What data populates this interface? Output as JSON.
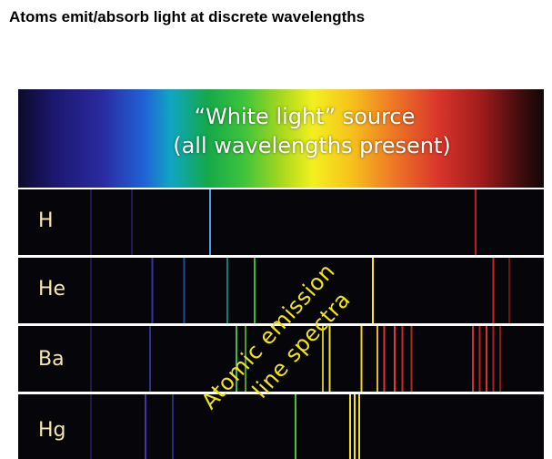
{
  "page": {
    "title": "Atoms emit/absorb light at discrete wavelengths"
  },
  "white_light": {
    "line1": "“White light” source",
    "line2": "(all wavelengths present)"
  },
  "spectra": [
    {
      "element": "H",
      "lines": [
        {
          "pos": 0.02,
          "color": "#3a2a8a",
          "opacity": 0.5
        },
        {
          "pos": 0.11,
          "color": "#3b2fa0",
          "opacity": 0.5
        },
        {
          "pos": 0.282,
          "color": "#4aa0e0",
          "opacity": 1
        },
        {
          "pos": 0.866,
          "color": "#c01818",
          "opacity": 1
        }
      ]
    },
    {
      "element": "He",
      "lines": [
        {
          "pos": 0.02,
          "color": "#3a2a8a",
          "opacity": 0.5
        },
        {
          "pos": 0.155,
          "color": "#3a3ab0",
          "opacity": 0.9
        },
        {
          "pos": 0.225,
          "color": "#2a6ad8",
          "opacity": 0.7
        },
        {
          "pos": 0.32,
          "color": "#1a9a8a",
          "opacity": 0.8
        },
        {
          "pos": 0.38,
          "color": "#38b838",
          "opacity": 1
        },
        {
          "pos": 0.64,
          "color": "#f5e92a",
          "opacity": 1
        },
        {
          "pos": 0.905,
          "color": "#d02020",
          "opacity": 1
        },
        {
          "pos": 0.94,
          "color": "#a01818",
          "opacity": 0.7
        }
      ]
    },
    {
      "element": "Ba",
      "lines": [
        {
          "pos": 0.02,
          "color": "#3a2a8a",
          "opacity": 0.5
        },
        {
          "pos": 0.15,
          "color": "#3a3ab0",
          "opacity": 0.8
        },
        {
          "pos": 0.34,
          "color": "#48b848",
          "opacity": 1
        },
        {
          "pos": 0.36,
          "color": "#60c030",
          "opacity": 0.8
        },
        {
          "pos": 0.53,
          "color": "#d8d820",
          "opacity": 0.9
        },
        {
          "pos": 0.545,
          "color": "#e8e020",
          "opacity": 1
        },
        {
          "pos": 0.615,
          "color": "#f2d020",
          "opacity": 1
        },
        {
          "pos": 0.65,
          "color": "#e8b820",
          "opacity": 1
        },
        {
          "pos": 0.665,
          "color": "#e03030",
          "opacity": 1
        },
        {
          "pos": 0.688,
          "color": "#e03a3a",
          "opacity": 1
        },
        {
          "pos": 0.705,
          "color": "#d02828",
          "opacity": 1
        },
        {
          "pos": 0.725,
          "color": "#c82828",
          "opacity": 0.9
        },
        {
          "pos": 0.86,
          "color": "#d03030",
          "opacity": 1
        },
        {
          "pos": 0.875,
          "color": "#c02020",
          "opacity": 1
        },
        {
          "pos": 0.89,
          "color": "#d83030",
          "opacity": 1
        },
        {
          "pos": 0.905,
          "color": "#c02020",
          "opacity": 0.9
        },
        {
          "pos": 0.92,
          "color": "#b01c1c",
          "opacity": 0.8
        }
      ]
    },
    {
      "element": "Hg",
      "lines": [
        {
          "pos": 0.02,
          "color": "#3a2a8a",
          "opacity": 0.5
        },
        {
          "pos": 0.14,
          "color": "#4a3ab8",
          "opacity": 0.9
        },
        {
          "pos": 0.2,
          "color": "#3a3ab0",
          "opacity": 0.7
        },
        {
          "pos": 0.47,
          "color": "#48c040",
          "opacity": 1
        },
        {
          "pos": 0.59,
          "color": "#f0e020",
          "opacity": 1
        },
        {
          "pos": 0.6,
          "color": "#f5e822",
          "opacity": 1
        },
        {
          "pos": 0.61,
          "color": "#f0dc20",
          "opacity": 1
        }
      ]
    }
  ],
  "annotation": {
    "line1": "Atomic emission",
    "line2": "line spectra",
    "color": "#f0e21b"
  }
}
